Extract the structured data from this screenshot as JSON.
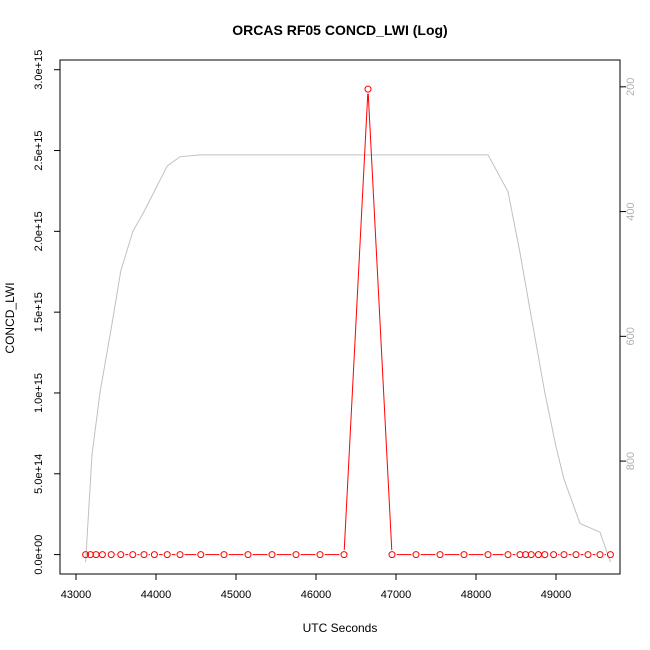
{
  "chart_data": {
    "type": "line",
    "title": "ORCAS RF05 CONCD_LWI (Log)",
    "xlabel": "UTC Seconds",
    "ylabel": "CONCD_LWI",
    "xlim": [
      42800,
      49800
    ],
    "ylim": [
      -120000000000000.0,
      3060000000000000.0
    ],
    "x_ticks": [
      43000,
      44000,
      45000,
      46000,
      47000,
      48000,
      49000
    ],
    "x_tick_labels": [
      "43000",
      "44000",
      "45000",
      "46000",
      "47000",
      "48000",
      "49000"
    ],
    "y_ticks": [
      0,
      500000000000000.0,
      1000000000000000.0,
      1500000000000000.0,
      2000000000000000.0,
      2500000000000000.0,
      3000000000000000.0
    ],
    "y_tick_labels": [
      "0.0e+00",
      "5.0e+14",
      "1.0e+15",
      "1.5e+15",
      "2.0e+15",
      "2.5e+15",
      "3.0e+15"
    ],
    "y2_ticks": [
      200,
      400,
      600,
      800
    ],
    "y2_tick_labels": [
      "200",
      "400",
      "600",
      "800"
    ],
    "y2_lim": [
      157,
      981
    ],
    "y2_reversed": true,
    "grid": false,
    "series": [
      {
        "color": "#ff0000",
        "marker": "open-circle",
        "x": [
          43120,
          43180,
          43250,
          43330,
          43440,
          43560,
          43710,
          43850,
          43980,
          44140,
          44300,
          44560,
          44850,
          45150,
          45450,
          45750,
          46050,
          46350,
          46650,
          46950,
          47250,
          47550,
          47850,
          48150,
          48400,
          48550,
          48620,
          48690,
          48780,
          48860,
          48970,
          49100,
          49250,
          49400,
          49550,
          49680
        ],
        "values": [
          0,
          0,
          0,
          0,
          0,
          0,
          0,
          0,
          0,
          0,
          0,
          0,
          0,
          0,
          0,
          0,
          0,
          0,
          2880000000000000.0,
          0,
          0,
          0,
          0,
          0,
          0,
          0,
          0,
          0,
          0,
          0,
          0,
          0,
          0,
          0,
          0,
          0
        ]
      },
      {
        "color": "#c0c0c0",
        "axis": "right",
        "x": [
          43120,
          43200,
          43300,
          43450,
          43560,
          43710,
          43850,
          44140,
          44300,
          44560,
          44850,
          46350,
          46650,
          46950,
          48150,
          48400,
          48550,
          48690,
          48860,
          49000,
          49100,
          49300,
          49550,
          49680
        ],
        "values": [
          962,
          790,
          690,
          580,
          495,
          432,
          400,
          327,
          312,
          309,
          309,
          309,
          309,
          309,
          309,
          368,
          466,
          568,
          690,
          777,
          829,
          900,
          914,
          962
        ]
      }
    ]
  }
}
